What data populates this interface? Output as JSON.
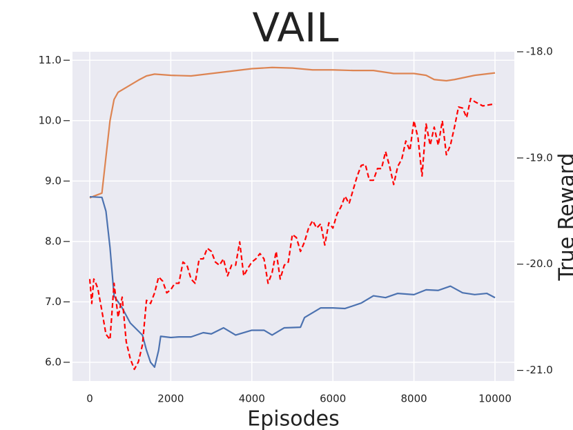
{
  "chart_data": {
    "type": "line",
    "title": "VAIL",
    "xlabel": "Episodes",
    "y2label": "True Reward",
    "xlim": [
      -426,
      10477
    ],
    "xticks": [
      0,
      2000,
      4000,
      6000,
      8000,
      10000
    ],
    "ylim": [
      5.69,
      11.14
    ],
    "yticks": [
      {
        "value": 6,
        "label": "6.0"
      },
      {
        "value": 7,
        "label": "7.0"
      },
      {
        "value": 8,
        "label": "8.0"
      },
      {
        "value": 9,
        "label": "9.0"
      },
      {
        "value": 10,
        "label": "10.0"
      },
      {
        "value": 11,
        "label": "11.0"
      }
    ],
    "y2lim": [
      -21.1,
      -18.0
    ],
    "y2ticks": [
      {
        "value": -21,
        "label": "-21.0"
      },
      {
        "value": -20,
        "label": "-20.0"
      },
      {
        "value": -19,
        "label": "-19.0"
      },
      {
        "value": -18,
        "label": "-18.0"
      }
    ],
    "grid": true,
    "series": [
      {
        "color": "#dd8452",
        "dash": false,
        "x": [
          0,
          100,
          300,
          400,
          500,
          600,
          700,
          900,
          1200,
          1400,
          1600,
          2000,
          2500,
          3000,
          3500,
          4000,
          4500,
          5000,
          5500,
          6000,
          6500,
          7000,
          7500,
          8000,
          8300,
          8500,
          8800,
          9000,
          9500,
          10000
        ],
        "values": [
          8.72,
          8.75,
          8.8,
          9.4,
          10.0,
          10.35,
          10.47,
          10.55,
          10.67,
          10.74,
          10.77,
          10.75,
          10.74,
          10.78,
          10.82,
          10.86,
          10.88,
          10.87,
          10.84,
          10.84,
          10.83,
          10.83,
          10.78,
          10.78,
          10.75,
          10.68,
          10.66,
          10.68,
          10.75,
          10.79
        ]
      },
      {
        "color": "#4c72b0",
        "dash": false,
        "x": [
          0,
          300,
          400,
          500,
          600,
          800,
          1000,
          1300,
          1400,
          1500,
          1600,
          1700,
          1750,
          2000,
          2200,
          2500,
          2800,
          3000,
          3300,
          3600,
          4000,
          4300,
          4500,
          4800,
          5200,
          5300,
          5700,
          6000,
          6300,
          6700,
          7000,
          7300,
          7600,
          8000,
          8300,
          8600,
          8900,
          9200,
          9500,
          9800,
          10000
        ],
        "values": [
          8.74,
          8.73,
          8.5,
          7.9,
          7.1,
          6.9,
          6.65,
          6.45,
          6.2,
          6.0,
          5.92,
          6.2,
          6.43,
          6.41,
          6.42,
          6.42,
          6.49,
          6.47,
          6.57,
          6.45,
          6.53,
          6.53,
          6.45,
          6.57,
          6.58,
          6.74,
          6.9,
          6.9,
          6.89,
          6.98,
          7.1,
          7.07,
          7.14,
          7.12,
          7.2,
          7.19,
          7.26,
          7.15,
          7.12,
          7.14,
          7.07
        ]
      },
      {
        "color": "#ff0000",
        "dash": true,
        "axis": "y2",
        "x": [
          0,
          50,
          100,
          150,
          200,
          300,
          400,
          500,
          600,
          700,
          800,
          900,
          1000,
          1100,
          1200,
          1300,
          1400,
          1500,
          1600,
          1700,
          1800,
          1900,
          2000,
          2100,
          2200,
          2300,
          2400,
          2500,
          2600,
          2700,
          2800,
          2900,
          3000,
          3100,
          3200,
          3300,
          3400,
          3500,
          3600,
          3700,
          3800,
          3900,
          4000,
          4100,
          4200,
          4300,
          4400,
          4500,
          4600,
          4700,
          4800,
          4900,
          5000,
          5100,
          5200,
          5300,
          5400,
          5500,
          5600,
          5700,
          5800,
          5900,
          6000,
          6100,
          6200,
          6300,
          6400,
          6500,
          6600,
          6700,
          6800,
          6900,
          7000,
          7100,
          7200,
          7300,
          7400,
          7500,
          7600,
          7700,
          7800,
          7900,
          8000,
          8100,
          8200,
          8300,
          8400,
          8500,
          8600,
          8700,
          8800,
          8900,
          9000,
          9100,
          9200,
          9300,
          9400,
          9500,
          9600,
          9700,
          10000
        ],
        "values": [
          -20.14,
          -20.37,
          -20.14,
          -20.18,
          -20.23,
          -20.44,
          -20.66,
          -20.71,
          -20.18,
          -20.5,
          -20.31,
          -20.73,
          -20.89,
          -20.99,
          -20.92,
          -20.76,
          -20.34,
          -20.37,
          -20.27,
          -20.12,
          -20.16,
          -20.27,
          -20.24,
          -20.18,
          -20.18,
          -19.98,
          -20.01,
          -20.14,
          -20.18,
          -19.95,
          -19.95,
          -19.85,
          -19.88,
          -19.98,
          -20.01,
          -19.95,
          -20.11,
          -20.01,
          -20.01,
          -19.79,
          -20.11,
          -20.04,
          -19.98,
          -19.95,
          -19.9,
          -19.95,
          -20.18,
          -20.08,
          -19.88,
          -20.14,
          -20.01,
          -19.98,
          -19.72,
          -19.75,
          -19.88,
          -19.79,
          -19.66,
          -19.59,
          -19.66,
          -19.62,
          -19.82,
          -19.61,
          -19.66,
          -19.53,
          -19.46,
          -19.36,
          -19.43,
          -19.3,
          -19.17,
          -19.07,
          -19.06,
          -19.21,
          -19.21,
          -19.1,
          -19.1,
          -18.94,
          -19.08,
          -19.25,
          -19.08,
          -19.01,
          -18.84,
          -18.93,
          -18.65,
          -18.81,
          -19.17,
          -18.68,
          -18.88,
          -18.71,
          -18.88,
          -18.65,
          -18.97,
          -18.88,
          -18.71,
          -18.52,
          -18.53,
          -18.62,
          -18.44,
          -18.47,
          -18.49,
          -18.51,
          -18.49
        ]
      }
    ]
  }
}
